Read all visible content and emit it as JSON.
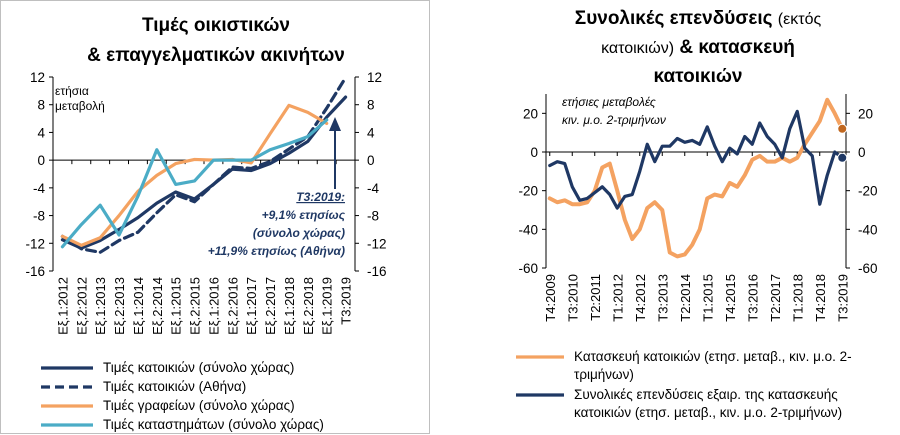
{
  "left": {
    "title_line1": "Τιμές οικιστικών",
    "title_line2": "& επαγγελματικών ακινήτων",
    "ylabel_line1": "ετήσια",
    "ylabel_line2": "μεταβολή",
    "annotation": {
      "line1": "Τ3:2019:",
      "line2": "+9,1% ετησίως",
      "line3": "(σύνολο χώρας)",
      "line4": "+11,9% ετησίως (Αθήνα)"
    },
    "colors": {
      "navy": "#1f3864",
      "orange": "#f4a261",
      "cyan": "#4bacc6"
    }
  },
  "right": {
    "title_line1_bold": "Συνολικές επενδύσεις",
    "title_line1_normal": "(εκτός",
    "title_line2_normal": "κατοικιών)",
    "title_line2_bold": "& κατασκευή",
    "title_line3": "κατοικιών",
    "note_line1": "ετήσιες μεταβολές",
    "note_line2": "κιν. μ.ο. 2-τριμήνων",
    "colors": {
      "orange": "#f4a261",
      "navy": "#1f3864"
    }
  },
  "chart_data": [
    {
      "type": "line",
      "title": "Τιμές οικιστικών & επαγγελματικών ακινήτων",
      "ylabel": "ετήσια μεταβολή",
      "ylim": [
        -16,
        12
      ],
      "yticks": [
        -16,
        -12,
        -8,
        -4,
        0,
        4,
        8,
        12
      ],
      "categories": [
        "Εξ.1:2012",
        "Εξ.2:2012",
        "Εξ.1:2013",
        "Εξ.2:2013",
        "Εξ.1:2014",
        "Εξ.2:2014",
        "Εξ.1:2015",
        "Εξ.2:2015",
        "Εξ.1:2016",
        "Εξ.2:2016",
        "Εξ.1:2017",
        "Εξ.2:2017",
        "Εξ.1:2018",
        "Εξ.2:2018",
        "Εξ.1:2019",
        "Τ3:2019"
      ],
      "series": [
        {
          "name": "Τιμές κατοικιών (σύνολο χώρας)",
          "color": "#1f3864",
          "dash": false,
          "x": [
            0,
            1,
            2,
            3,
            4,
            5,
            6,
            7,
            8,
            9,
            10,
            11,
            12,
            13,
            14,
            15
          ],
          "values": [
            -11.5,
            -12.7,
            -11.6,
            -10.0,
            -8.3,
            -6.2,
            -4.6,
            -5.6,
            -3.5,
            -1.3,
            -1.5,
            -0.5,
            1.0,
            2.7,
            6.2,
            9.1
          ]
        },
        {
          "name": "Τιμές κατοικιών (Αθήνα)",
          "color": "#1f3864",
          "dash": true,
          "x": [
            0,
            1,
            2,
            3,
            4,
            5,
            6,
            7,
            8,
            9,
            10,
            11,
            12,
            13,
            14,
            15
          ],
          "values": [
            -11.0,
            -12.8,
            -13.3,
            -11.6,
            -10.4,
            -7.6,
            -5.0,
            -6.0,
            -3.5,
            -1.0,
            -1.2,
            -0.2,
            1.6,
            3.4,
            7.5,
            11.9
          ]
        },
        {
          "name": "Τιμές γραφείων (σύνολο χώρας)",
          "color": "#f4a261",
          "dash": false,
          "x": [
            0,
            1,
            2,
            3,
            4,
            5,
            6,
            7,
            8,
            9,
            10,
            11,
            12,
            13,
            14
          ],
          "values": [
            -11.0,
            -12.3,
            -11.2,
            -8.0,
            -4.5,
            -2.2,
            -0.5,
            0.1,
            0.0,
            0.1,
            -0.4,
            3.8,
            7.9,
            6.9,
            5.3
          ]
        },
        {
          "name": "Τιμές καταστημάτων (σύνολο χώρας)",
          "color": "#4bacc6",
          "dash": false,
          "x": [
            0,
            1,
            2,
            3,
            4,
            5,
            6,
            7,
            8,
            9,
            10,
            11,
            12,
            13,
            14
          ],
          "values": [
            -12.5,
            -9.3,
            -6.5,
            -10.8,
            -5.2,
            1.5,
            -3.5,
            -3.0,
            0.0,
            0.0,
            0.0,
            1.5,
            2.4,
            3.4,
            5.8
          ]
        }
      ]
    },
    {
      "type": "line",
      "title": "Συνολικές επενδύσεις (εκτός κατοικιών) & κατασκευή κατοικιών",
      "ylim": [
        -60,
        30
      ],
      "yticks_left": [
        -60,
        -40,
        -20,
        0,
        20
      ],
      "yticks_right": [
        -60,
        -40,
        -20,
        0,
        20
      ],
      "categories": [
        "Τ4:2009",
        "Τ3:2010",
        "Τ2:2011",
        "Τ1:2012",
        "Τ4:2012",
        "Τ3:2013",
        "Τ2:2014",
        "Τ1:2015",
        "Τ4:2015",
        "Τ3:2016",
        "Τ2:2017",
        "Τ1:2018",
        "Τ4:2018",
        "Τ3:2019"
      ],
      "series": [
        {
          "name": "Κατασκευή κατοικιών (ετησ. μεταβ., κιν. μ.ο. 2-τριμήνων)",
          "color": "#f4a261",
          "x": [
            0,
            1,
            2,
            3,
            4,
            5,
            6,
            7,
            8,
            9,
            10,
            11,
            12,
            13,
            14,
            15,
            16,
            17,
            18,
            19,
            20,
            21,
            22,
            23,
            24,
            25,
            26,
            27,
            28,
            29,
            30,
            31,
            32,
            33,
            34,
            35,
            36,
            37,
            38,
            39
          ],
          "values": [
            -24,
            -26,
            -25,
            -27,
            -27,
            -26,
            -20,
            -8,
            -6,
            -20,
            -35,
            -45,
            -40,
            -29,
            -26,
            -30,
            -52,
            -54,
            -53,
            -48,
            -40,
            -24,
            -22,
            -23,
            -16,
            -18,
            -12,
            -4,
            -2,
            -5,
            -5,
            -3,
            -5,
            -3,
            4,
            10,
            16,
            27,
            20,
            12
          ]
        },
        {
          "name": "Συνολικές επενδύσεις εξαιρ. της κατασκευής κατοικιών (ετησ. μεταβ., κιν. μ.ο. 2-τριμήνων)",
          "color": "#1f3864",
          "x": [
            0,
            1,
            2,
            3,
            4,
            5,
            6,
            7,
            8,
            9,
            10,
            11,
            12,
            13,
            14,
            15,
            16,
            17,
            18,
            19,
            20,
            21,
            22,
            23,
            24,
            25,
            26,
            27,
            28,
            29,
            30,
            31,
            32,
            33,
            34,
            35,
            36,
            37,
            38,
            39
          ],
          "values": [
            -7,
            -5,
            -6,
            -18,
            -25,
            -24,
            -21,
            -18,
            -22,
            -29,
            -23,
            -22,
            -10,
            4,
            -5,
            3,
            3,
            7,
            5,
            6,
            4,
            13,
            3,
            -5,
            2,
            -1,
            8,
            4,
            15,
            8,
            4,
            -3,
            12,
            21,
            2,
            -2,
            -27,
            -12,
            0,
            -3
          ]
        }
      ]
    }
  ]
}
